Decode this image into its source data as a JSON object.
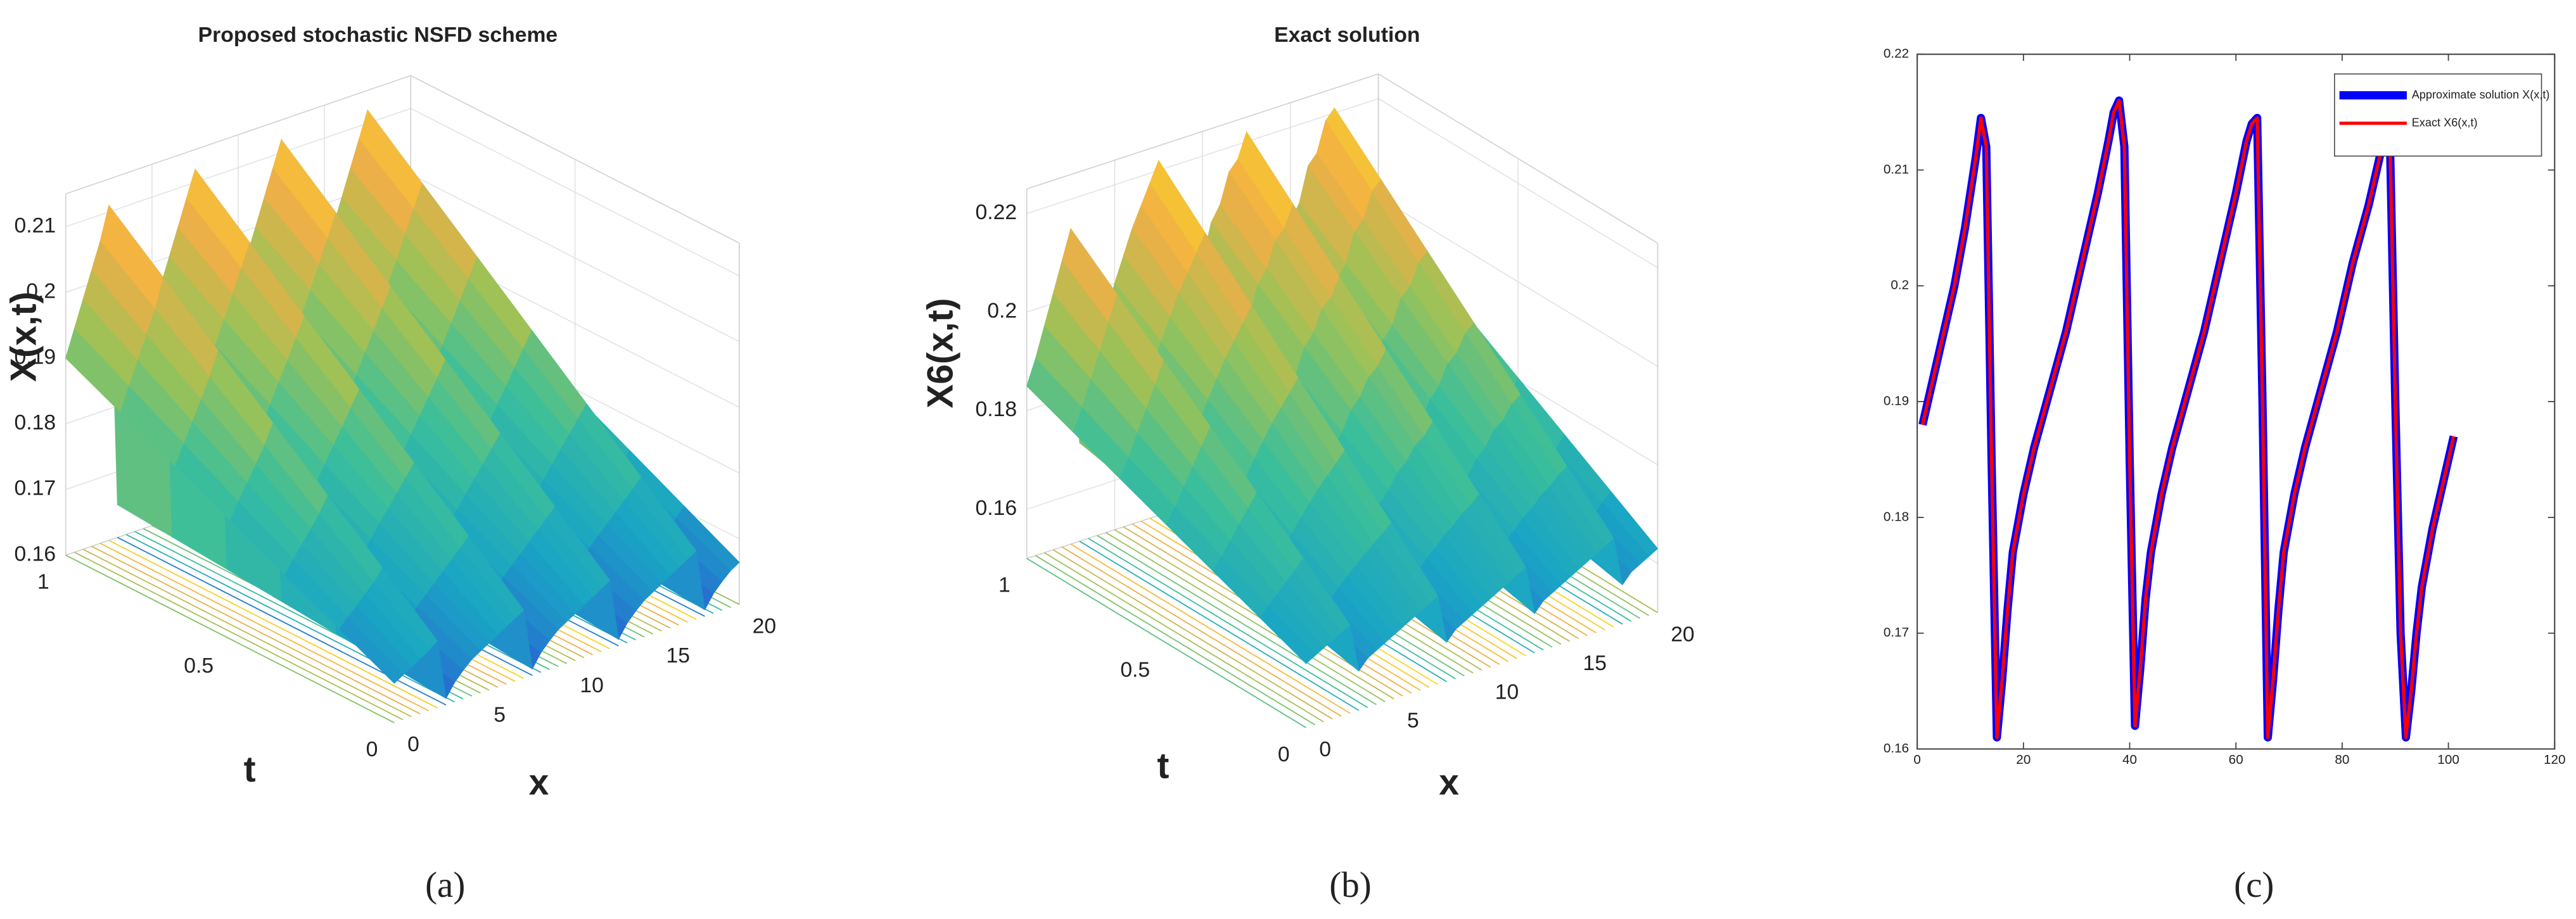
{
  "chart_data": [
    {
      "type": "surface3d",
      "title": "Proposed stochastic NSFD scheme",
      "xlabel": "x",
      "ylabel": "t",
      "zlabel": "X(x,t)",
      "caption": "(a)",
      "x": [
        0,
        0.5,
        1,
        1.5,
        2,
        2.5,
        3,
        3.5,
        4,
        4.5,
        5,
        5.5,
        6,
        6.5,
        7,
        7.5,
        8,
        8.5,
        9,
        9.5,
        10,
        10.5,
        11,
        11.5,
        12,
        12.5,
        13,
        13.5,
        14,
        14.5,
        15,
        15.5,
        16,
        16.5,
        17,
        17.5,
        18,
        18.5,
        19,
        19.5,
        20
      ],
      "t": [
        0,
        1
      ],
      "z": [
        [
          0.166,
          0.1668,
          0.1676,
          0.1684,
          0.1692,
          0.1702,
          0.161,
          0.163,
          0.1644,
          0.1656,
          0.1664,
          0.1672,
          0.168,
          0.1688,
          0.1696,
          0.1704,
          0.161,
          0.163,
          0.1644,
          0.1656,
          0.1664,
          0.1672,
          0.168,
          0.1688,
          0.1696,
          0.1704,
          0.161,
          0.163,
          0.1644,
          0.1656,
          0.1664,
          0.1672,
          0.168,
          0.1688,
          0.1696,
          0.1704,
          0.161,
          0.163,
          0.1644,
          0.1656,
          0.1664
        ],
        [
          0.19,
          0.194,
          0.198,
          0.202,
          0.206,
          0.211,
          0.165,
          0.175,
          0.182,
          0.188,
          0.192,
          0.196,
          0.2,
          0.204,
          0.208,
          0.212,
          0.165,
          0.175,
          0.182,
          0.188,
          0.192,
          0.196,
          0.2,
          0.204,
          0.208,
          0.212,
          0.165,
          0.175,
          0.182,
          0.188,
          0.192,
          0.196,
          0.2,
          0.204,
          0.208,
          0.212,
          0.165,
          0.175,
          0.182,
          0.188,
          0.192
        ]
      ],
      "xlim": [
        0,
        20
      ],
      "ylim": [
        0,
        1
      ],
      "zlim": [
        0.16,
        0.215
      ],
      "xticks": [
        0,
        5,
        10,
        15,
        20
      ],
      "yticks": [
        0,
        0.5,
        1
      ],
      "zticks": [
        0.16,
        0.17,
        0.18,
        0.19,
        0.2,
        0.21
      ],
      "colormap": [
        "#2a5fd4",
        "#1aa6c4",
        "#3cbf9a",
        "#9cc257",
        "#f3ae45",
        "#f9e21e"
      ],
      "grid": true
    },
    {
      "type": "surface3d",
      "title": "Exact solution",
      "xlabel": "x",
      "ylabel": "t",
      "zlabel": "X6(x,t)",
      "caption": "(b)",
      "x": [
        0,
        0.5,
        1,
        1.5,
        2,
        2.5,
        3,
        3.5,
        4,
        4.5,
        5,
        5.5,
        6,
        6.5,
        7,
        7.5,
        8,
        8.5,
        9,
        9.5,
        10,
        10.5,
        11,
        11.5,
        12,
        12.5,
        13,
        13.5,
        14,
        14.5,
        15,
        15.5,
        16,
        16.5,
        17,
        17.5,
        18,
        18.5,
        19,
        19.5,
        20
      ],
      "t": [
        0,
        1
      ],
      "z": [
        [
          0.163,
          0.164,
          0.165,
          0.166,
          0.167,
          0.168,
          0.158,
          0.16,
          0.161,
          0.162,
          0.163,
          0.164,
          0.165,
          0.166,
          0.167,
          0.168,
          0.158,
          0.16,
          0.161,
          0.162,
          0.163,
          0.164,
          0.165,
          0.166,
          0.167,
          0.168,
          0.158,
          0.16,
          0.161,
          0.162,
          0.163,
          0.164,
          0.165,
          0.166,
          0.167,
          0.168,
          0.158,
          0.16,
          0.161,
          0.162,
          0.163
        ],
        [
          0.185,
          0.19,
          0.196,
          0.202,
          0.208,
          0.214,
          0.17,
          0.18,
          0.188,
          0.194,
          0.2,
          0.205,
          0.21,
          0.214,
          0.218,
          0.222,
          0.17,
          0.181,
          0.187,
          0.195,
          0.199,
          0.206,
          0.209,
          0.215,
          0.217,
          0.222,
          0.171,
          0.18,
          0.189,
          0.194,
          0.201,
          0.204,
          0.211,
          0.213,
          0.219,
          0.221,
          0.17,
          0.179,
          0.186,
          0.193,
          0.198
        ]
      ],
      "xlim": [
        0,
        20
      ],
      "ylim": [
        0,
        1
      ],
      "zlim": [
        0.15,
        0.225
      ],
      "xticks": [
        0,
        5,
        10,
        15,
        20
      ],
      "yticks": [
        0,
        0.5,
        1
      ],
      "zticks": [
        0.16,
        0.18,
        0.2,
        0.22
      ],
      "colormap": [
        "#2a5fd4",
        "#1aa6c4",
        "#3cbf9a",
        "#9cc257",
        "#f3ae45",
        "#f9e21e"
      ],
      "grid": true
    },
    {
      "type": "line",
      "caption": "(c)",
      "x": [
        1,
        3,
        5,
        7,
        9,
        11,
        12,
        13,
        14,
        15,
        16,
        17,
        18,
        20,
        22,
        25,
        28,
        31,
        34,
        36,
        37,
        38,
        39,
        40,
        41,
        42,
        43,
        44,
        46,
        48,
        51,
        54,
        57,
        60,
        62,
        63,
        64,
        65,
        66,
        67,
        68,
        69,
        71,
        73,
        76,
        79,
        82,
        85,
        87,
        88,
        89,
        90,
        91,
        92,
        93,
        94,
        95,
        97,
        99,
        101
      ],
      "series": [
        {
          "name": "Approximate solution X(x,t)",
          "color": "#0000ff",
          "values": [
            0.188,
            0.192,
            0.196,
            0.2,
            0.205,
            0.211,
            0.2145,
            0.212,
            0.185,
            0.161,
            0.166,
            0.172,
            0.177,
            0.182,
            0.186,
            0.191,
            0.196,
            0.202,
            0.208,
            0.2125,
            0.215,
            0.216,
            0.212,
            0.185,
            0.162,
            0.167,
            0.173,
            0.177,
            0.182,
            0.186,
            0.191,
            0.196,
            0.202,
            0.208,
            0.2125,
            0.214,
            0.2145,
            0.19,
            0.161,
            0.166,
            0.172,
            0.177,
            0.182,
            0.186,
            0.191,
            0.196,
            0.202,
            0.207,
            0.211,
            0.213,
            0.2125,
            0.19,
            0.17,
            0.161,
            0.165,
            0.17,
            0.174,
            0.179,
            0.183,
            0.187
          ]
        },
        {
          "name": "Exact X6(x,t)",
          "color": "#ff0000",
          "values": [
            0.188,
            0.192,
            0.196,
            0.2,
            0.205,
            0.211,
            0.2145,
            0.212,
            0.185,
            0.161,
            0.166,
            0.172,
            0.177,
            0.182,
            0.186,
            0.191,
            0.196,
            0.202,
            0.208,
            0.2125,
            0.215,
            0.216,
            0.212,
            0.185,
            0.162,
            0.167,
            0.173,
            0.177,
            0.182,
            0.186,
            0.191,
            0.196,
            0.202,
            0.208,
            0.2125,
            0.214,
            0.2145,
            0.19,
            0.161,
            0.166,
            0.172,
            0.177,
            0.182,
            0.186,
            0.191,
            0.196,
            0.202,
            0.207,
            0.211,
            0.213,
            0.2125,
            0.19,
            0.17,
            0.161,
            0.165,
            0.17,
            0.174,
            0.179,
            0.183,
            0.187
          ]
        }
      ],
      "xlim": [
        0,
        120
      ],
      "ylim": [
        0.16,
        0.22
      ],
      "xticks": [
        0,
        20,
        40,
        60,
        80,
        100,
        120
      ],
      "yticks": [
        0.16,
        0.17,
        0.18,
        0.19,
        0.2,
        0.21,
        0.22
      ],
      "legend": "upper right"
    }
  ]
}
